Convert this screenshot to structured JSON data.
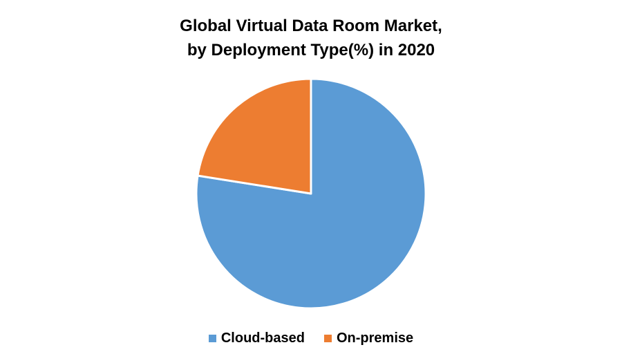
{
  "chart_data": {
    "type": "pie",
    "title_lines": [
      "Global Virtual Data Room Market,",
      "by Deployment Type(%) in 2020"
    ],
    "unit": "%",
    "categories": [
      "Cloud-based",
      "On-premise"
    ],
    "values": [
      77.5,
      22.5
    ],
    "colors": [
      "#5B9BD5",
      "#ED7D31"
    ],
    "start_angle_deg": 0,
    "direction": "clockwise",
    "legend_position": "bottom"
  }
}
